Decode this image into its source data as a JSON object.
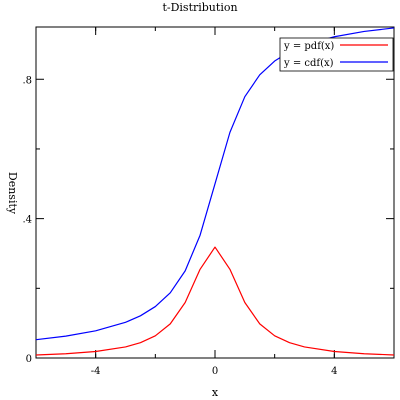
{
  "chart_data": {
    "type": "line",
    "title": "t-Distribution",
    "xlabel": "x",
    "ylabel": "Density",
    "xlim": [
      -6,
      6
    ],
    "ylim": [
      0,
      0.95
    ],
    "x_ticks": [
      -4,
      0,
      4
    ],
    "x_tick_labels": [
      "-4",
      "0",
      "4"
    ],
    "y_ticks": [
      0,
      0.4,
      0.8
    ],
    "y_tick_labels": [
      "0",
      ".4",
      ".8"
    ],
    "legend": {
      "position": "top-right"
    },
    "series": [
      {
        "name": "y = pdf(x)",
        "color": "#ff0000",
        "x": [
          -6,
          -5,
          -4,
          -3,
          -2.5,
          -2,
          -1.5,
          -1,
          -0.5,
          0,
          0.5,
          1,
          1.5,
          2,
          2.5,
          3,
          4,
          5,
          6
        ],
        "y": [
          0.0087,
          0.0122,
          0.0187,
          0.0318,
          0.0439,
          0.0637,
          0.0979,
          0.1592,
          0.2546,
          0.3183,
          0.2546,
          0.1592,
          0.0979,
          0.0637,
          0.0439,
          0.0318,
          0.0187,
          0.0122,
          0.0087
        ]
      },
      {
        "name": "y = cdf(x)",
        "color": "#0000ff",
        "x": [
          -6,
          -5,
          -4,
          -3,
          -2.5,
          -2,
          -1.5,
          -1,
          -0.5,
          0,
          0.5,
          1,
          1.5,
          2,
          2.5,
          3,
          4,
          5,
          6
        ],
        "y": [
          0.0526,
          0.0628,
          0.078,
          0.1024,
          0.1211,
          0.1476,
          0.1872,
          0.25,
          0.3524,
          0.5,
          0.6476,
          0.75,
          0.8128,
          0.8524,
          0.8789,
          0.8976,
          0.922,
          0.9372,
          0.9474
        ]
      }
    ]
  }
}
